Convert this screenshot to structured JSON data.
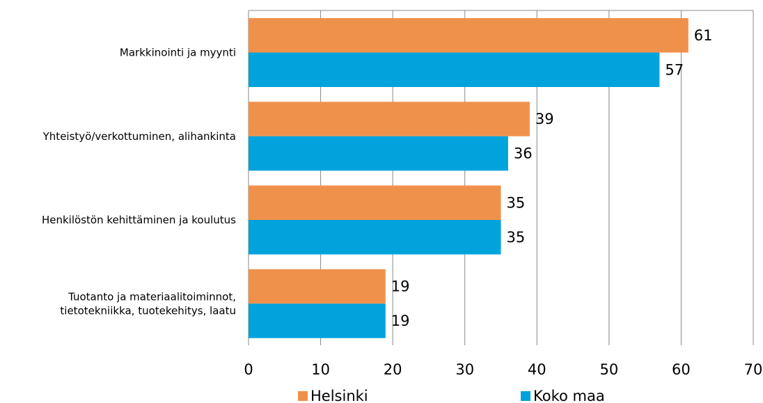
{
  "chart_data": {
    "type": "bar",
    "orientation": "horizontal",
    "categories": [
      [
        "Markkinointi ja myynti"
      ],
      [
        "Yhteistyö/verkottuminen, alihankinta"
      ],
      [
        "Henkilöstön kehittäminen ja koulutus"
      ],
      [
        "Tuotanto ja materiaalitoiminnot,",
        "tietotekniikka, tuotekehitys, laatu"
      ]
    ],
    "series": [
      {
        "name": "Helsinki",
        "color": "#F0914B",
        "values": [
          61,
          39,
          35,
          19
        ]
      },
      {
        "name": "Koko maa",
        "color": "#00A3DB",
        "values": [
          57,
          36,
          35,
          19
        ]
      }
    ],
    "title": "",
    "xlabel": "",
    "ylabel": "",
    "xlim": [
      0,
      70
    ],
    "xticks": [
      0,
      10,
      20,
      30,
      40,
      50,
      60,
      70
    ],
    "grid": "vertical",
    "legend": "bottom"
  }
}
